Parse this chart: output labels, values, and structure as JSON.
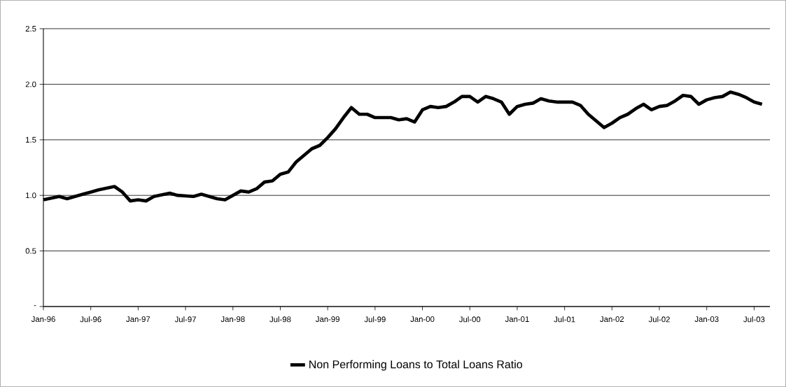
{
  "chart_data": {
    "type": "line",
    "x": [
      "1996-01",
      "1996-03",
      "1996-04",
      "1996-06",
      "1996-07",
      "1996-08",
      "1996-10",
      "1996-11",
      "1996-12",
      "1997-01",
      "1997-02",
      "1997-03",
      "1997-05",
      "1997-06",
      "1997-08",
      "1997-09",
      "1997-11",
      "1997-12",
      "1998-02",
      "1998-03",
      "1998-04",
      "1998-05",
      "1998-06",
      "1998-07",
      "1998-08",
      "1998-09",
      "1998-10",
      "1998-11",
      "1998-12",
      "1999-01",
      "1999-02",
      "1999-03",
      "1999-04",
      "1999-05",
      "1999-06",
      "1999-07",
      "1999-09",
      "1999-10",
      "1999-11",
      "1999-12",
      "2000-01",
      "2000-02",
      "2000-03",
      "2000-04",
      "2000-05",
      "2000-06",
      "2000-07",
      "2000-08",
      "2000-09",
      "2000-10",
      "2000-11",
      "2000-12",
      "2001-01",
      "2001-02",
      "2001-03",
      "2001-04",
      "2001-05",
      "2001-06",
      "2001-08",
      "2001-09",
      "2001-10",
      "2001-11",
      "2001-12",
      "2002-01",
      "2002-02",
      "2002-03",
      "2002-04",
      "2002-05",
      "2002-06",
      "2002-07",
      "2002-08",
      "2002-09",
      "2002-10",
      "2002-11",
      "2002-12",
      "2003-01",
      "2003-02",
      "2003-03",
      "2003-04",
      "2003-05",
      "2003-06",
      "2003-07",
      "2003-08"
    ],
    "series": [
      {
        "name": "Non Performing Loans to Total Loans Ratio",
        "color": "#000000",
        "values": [
          0.96,
          0.99,
          0.97,
          1.01,
          1.03,
          1.05,
          1.08,
          1.03,
          0.95,
          0.96,
          0.95,
          0.99,
          1.02,
          1.0,
          0.99,
          1.01,
          0.97,
          0.96,
          1.04,
          1.03,
          1.06,
          1.12,
          1.13,
          1.19,
          1.21,
          1.3,
          1.36,
          1.42,
          1.45,
          1.52,
          1.6,
          1.7,
          1.79,
          1.73,
          1.73,
          1.7,
          1.7,
          1.68,
          1.69,
          1.66,
          1.77,
          1.8,
          1.79,
          1.8,
          1.84,
          1.89,
          1.89,
          1.84,
          1.89,
          1.87,
          1.84,
          1.73,
          1.8,
          1.82,
          1.83,
          1.87,
          1.85,
          1.84,
          1.84,
          1.81,
          1.73,
          1.67,
          1.61,
          1.65,
          1.7,
          1.73,
          1.78,
          1.82,
          1.77,
          1.8,
          1.81,
          1.85,
          1.9,
          1.89,
          1.82,
          1.86,
          1.88,
          1.89,
          1.93,
          1.91,
          1.88,
          1.84,
          1.82
        ]
      }
    ],
    "xlim": [
      "1996-01",
      "2003-09"
    ],
    "xticks": [
      {
        "value": "1996-01",
        "label": "Jan-96"
      },
      {
        "value": "1996-07",
        "label": "Jul-96"
      },
      {
        "value": "1997-01",
        "label": "Jan-97"
      },
      {
        "value": "1997-07",
        "label": "Jul-97"
      },
      {
        "value": "1998-01",
        "label": "Jan-98"
      },
      {
        "value": "1998-07",
        "label": "Jul-98"
      },
      {
        "value": "1999-01",
        "label": "Jan-99"
      },
      {
        "value": "1999-07",
        "label": "Jul-99"
      },
      {
        "value": "2000-01",
        "label": "Jan-00"
      },
      {
        "value": "2000-07",
        "label": "Jul-00"
      },
      {
        "value": "2001-01",
        "label": "Jan-01"
      },
      {
        "value": "2001-07",
        "label": "Jul-01"
      },
      {
        "value": "2002-01",
        "label": "Jan-02"
      },
      {
        "value": "2002-07",
        "label": "Jul-02"
      },
      {
        "value": "2003-01",
        "label": "Jan-03"
      },
      {
        "value": "2003-07",
        "label": "Jul-03"
      }
    ],
    "ylim": [
      0,
      2.5
    ],
    "yticks": [
      {
        "value": 0,
        "label": "-"
      },
      {
        "value": 0.5,
        "label": "0.5"
      },
      {
        "value": 1.0,
        "label": "1.0"
      },
      {
        "value": 1.5,
        "label": "1.5"
      },
      {
        "value": 2.0,
        "label": "2.0"
      },
      {
        "value": 2.5,
        "label": "2.5"
      }
    ],
    "grid": "y",
    "legend": "bottom",
    "marker": "none",
    "line_style": "solid"
  }
}
